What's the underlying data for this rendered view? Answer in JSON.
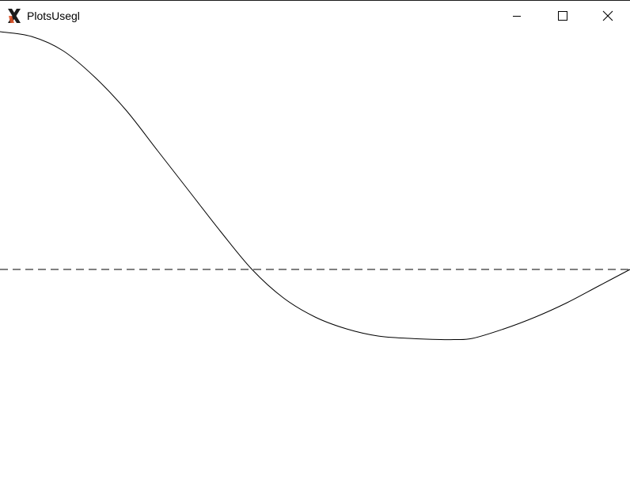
{
  "window": {
    "title": "PlotsUsegl",
    "app_icon": "x-logo-icon",
    "controls": {
      "minimize": "minimize-icon",
      "maximize": "maximize-icon",
      "close": "close-icon"
    }
  },
  "chart_data": {
    "type": "line",
    "title": "",
    "xlabel": "",
    "ylabel": "",
    "grid": false,
    "legend": "none",
    "series": [
      {
        "style": "solid",
        "color": "#000000",
        "x": [
          0.0,
          0.05,
          0.1,
          0.15,
          0.2,
          0.25,
          0.3,
          0.35,
          0.4,
          0.45,
          0.5,
          0.55,
          0.6,
          0.65,
          0.7,
          0.72,
          0.75,
          0.8,
          0.85,
          0.9,
          0.95,
          1.0
        ],
        "y": [
          1.0,
          0.98,
          0.92,
          0.81,
          0.67,
          0.5,
          0.33,
          0.16,
          0.0,
          -0.12,
          -0.2,
          -0.25,
          -0.28,
          -0.29,
          -0.295,
          -0.295,
          -0.29,
          -0.25,
          -0.2,
          -0.14,
          -0.07,
          0.0
        ]
      },
      {
        "style": "dashed",
        "color": "#000000",
        "x": [
          0.0,
          1.0
        ],
        "y": [
          0.0,
          0.0
        ]
      }
    ],
    "xlim": [
      0.0,
      1.0
    ],
    "ylim": [
      -1.0,
      1.0
    ]
  }
}
